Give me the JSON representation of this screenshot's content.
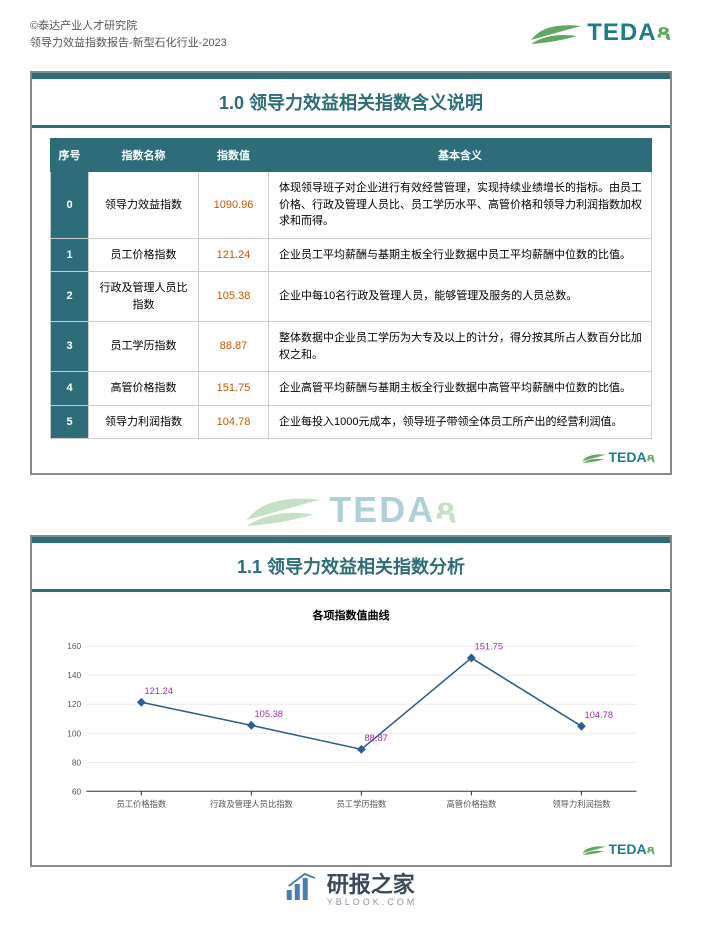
{
  "header": {
    "line1": "©泰达产业人才研究院",
    "line2": "领导力效益指数报告-新型石化行业-2023",
    "logo_text": "TEDA",
    "logo_colors": {
      "leaf": "#5fa85f",
      "text1": "#1e7c8e"
    }
  },
  "section1": {
    "title": "1.0 领导力效益相关指数含义说明",
    "columns": [
      "序号",
      "指数名称",
      "指数值",
      "基本含义"
    ],
    "rows": [
      {
        "seq": "0",
        "name": "领导力效益指数",
        "val": "1090.96",
        "desc": "体现领导班子对企业进行有效经营管理，实现持续业绩增长的指标。由员工价格、行政及管理人员比、员工学历水平、高管价格和领导力利润指数加权求和而得。"
      },
      {
        "seq": "1",
        "name": "员工价格指数",
        "val": "121.24",
        "desc": "企业员工平均薪酬与基期主板全行业数据中员工平均薪酬中位数的比值。"
      },
      {
        "seq": "2",
        "name": "行政及管理人员比指数",
        "val": "105.38",
        "desc": "企业中每10名行政及管理人员，能够管理及服务的人员总数。"
      },
      {
        "seq": "3",
        "name": "员工学历指数",
        "val": "88.87",
        "desc": "整体数据中企业员工学历为大专及以上的计分，得分按其所占人数百分比加权之和。"
      },
      {
        "seq": "4",
        "name": "高管价格指数",
        "val": "151.75",
        "desc": "企业高管平均薪酬与基期主板全行业数据中高管平均薪酬中位数的比值。"
      },
      {
        "seq": "5",
        "name": "领导力利润指数",
        "val": "104.78",
        "desc": "企业每投入1000元成本，领导班子带领全体员工所产出的经营利润值。"
      }
    ]
  },
  "section2": {
    "title": "1.1 领导力效益相关指数分析",
    "chart": {
      "type": "line",
      "title": "各项指数值曲线",
      "categories": [
        "员工价格指数",
        "行政及管理人员比指数",
        "员工学历指数",
        "高管价格指数",
        "领导力利润指数"
      ],
      "values": [
        121.24,
        105.38,
        88.87,
        151.75,
        104.78
      ],
      "ylim": [
        60,
        160
      ],
      "ytick_step": 20,
      "line_color": "#2d5d8e",
      "marker_color": "#2d5d8e",
      "label_color": "#a030a0",
      "grid_color": "#d8d8d8",
      "axis_color": "#333",
      "label_fontsize": 9,
      "tick_fontsize": 8
    }
  },
  "footer": {
    "brand": "研报之家",
    "url": "YBLOOK.COM",
    "icon_color": "#4a7db0"
  },
  "colors": {
    "primary": "#2d6d7a",
    "green": "#5fa85f",
    "value": "#cc5500",
    "border": "#888"
  }
}
